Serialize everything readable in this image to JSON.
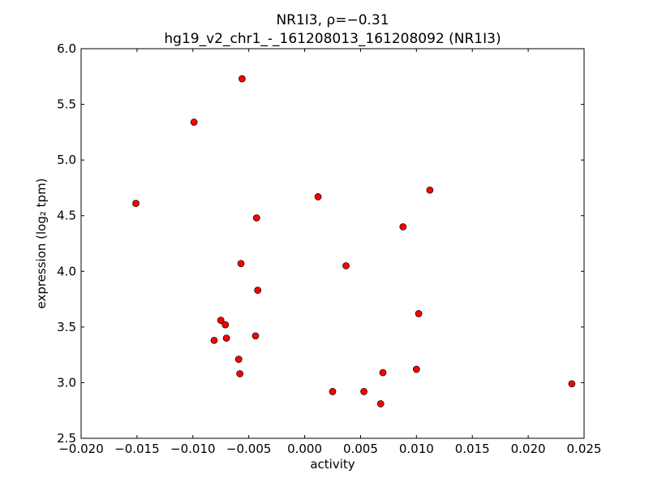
{
  "chart_data": {
    "type": "scatter",
    "title_line1": "NR1I3, ρ=−0.31",
    "title_line2": "hg19_v2_chr1_-_161208013_161208092 (NR1I3)",
    "xlabel": "activity",
    "ylabel": "expression (log₂ tpm)",
    "xlim": [
      -0.02,
      0.025
    ],
    "ylim": [
      2.5,
      6.0
    ],
    "xticks": [
      "−0.020",
      "−0.015",
      "−0.010",
      "−0.005",
      "0.000",
      "0.005",
      "0.010",
      "0.015",
      "0.020",
      "0.025"
    ],
    "xtick_values": [
      -0.02,
      -0.015,
      -0.01,
      -0.005,
      0.0,
      0.005,
      0.01,
      0.015,
      0.02,
      0.025
    ],
    "yticks": [
      "2.5",
      "3.0",
      "3.5",
      "4.0",
      "4.5",
      "5.0",
      "5.5",
      "6.0"
    ],
    "ytick_values": [
      2.5,
      3.0,
      3.5,
      4.0,
      4.5,
      5.0,
      5.5,
      6.0
    ],
    "marker_color": "#ff0000",
    "points": [
      [
        -0.0056,
        5.73
      ],
      [
        -0.0099,
        5.34
      ],
      [
        -0.0151,
        4.61
      ],
      [
        0.0012,
        4.67
      ],
      [
        0.0112,
        4.73
      ],
      [
        -0.0043,
        4.48
      ],
      [
        0.0088,
        4.4
      ],
      [
        -0.0057,
        4.07
      ],
      [
        0.0037,
        4.05
      ],
      [
        -0.0042,
        3.83
      ],
      [
        0.0102,
        3.62
      ],
      [
        -0.0075,
        3.56
      ],
      [
        -0.0071,
        3.52
      ],
      [
        -0.007,
        3.4
      ],
      [
        -0.0044,
        3.42
      ],
      [
        -0.0081,
        3.38
      ],
      [
        -0.0059,
        3.21
      ],
      [
        -0.0058,
        3.08
      ],
      [
        0.007,
        3.09
      ],
      [
        0.01,
        3.12
      ],
      [
        0.0239,
        2.99
      ],
      [
        0.0025,
        2.92
      ],
      [
        0.0053,
        2.92
      ],
      [
        0.0068,
        2.81
      ]
    ]
  }
}
